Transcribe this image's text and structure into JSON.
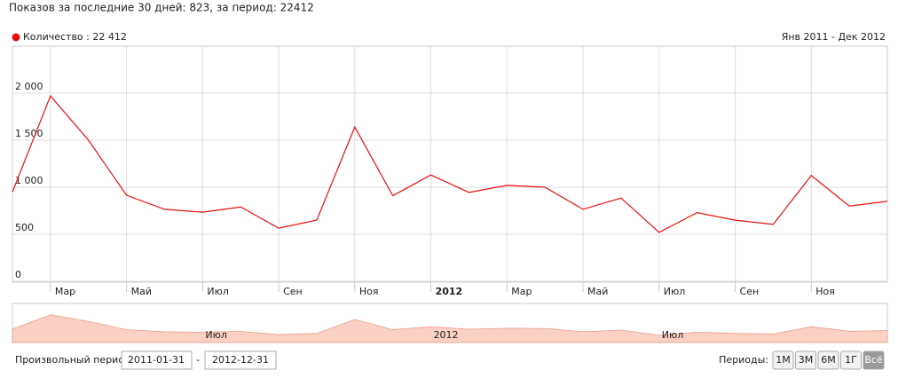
{
  "header": {
    "title": "Показов за последние 30 дней: 823, за период: 22412"
  },
  "chart_data": {
    "type": "line",
    "legend": "Количество : 22 412",
    "range_label": "Янв 2011 - Дек 2012",
    "categories": [
      null,
      "Мар",
      null,
      "Май",
      null,
      "Июл",
      null,
      "Сен",
      null,
      "Ноя",
      null,
      "2012",
      null,
      "Мар",
      null,
      "Май",
      null,
      "Июл",
      null,
      "Сен",
      null,
      "Ноя",
      null,
      null
    ],
    "series": [
      {
        "name": "Количество",
        "color": "#e8100f",
        "values": [
          950,
          1970,
          1500,
          915,
          765,
          735,
          790,
          565,
          650,
          1640,
          910,
          1130,
          945,
          1020,
          1000,
          765,
          885,
          520,
          730,
          650,
          605,
          1125,
          800,
          850
        ]
      }
    ],
    "ylim": [
      0,
      2500
    ],
    "yticks": [
      0,
      500,
      {
        "value": 1000,
        "label": "1 000"
      },
      {
        "value": 1500,
        "label": "1 500"
      },
      {
        "value": 2000,
        "label": "2 000"
      }
    ],
    "grid": true
  },
  "navigator": {
    "labels": [
      "Июл",
      "2012",
      "Июл"
    ],
    "color": "#fcd0c4"
  },
  "controls": {
    "custom_period_label": "Произвольный период:",
    "from": "2011-01-31",
    "separator": "-",
    "to": "2012-12-31",
    "periods_label": "Периоды:",
    "periods": [
      "1М",
      "3М",
      "6М",
      "1Г",
      "Всё"
    ],
    "active_period": 4
  }
}
